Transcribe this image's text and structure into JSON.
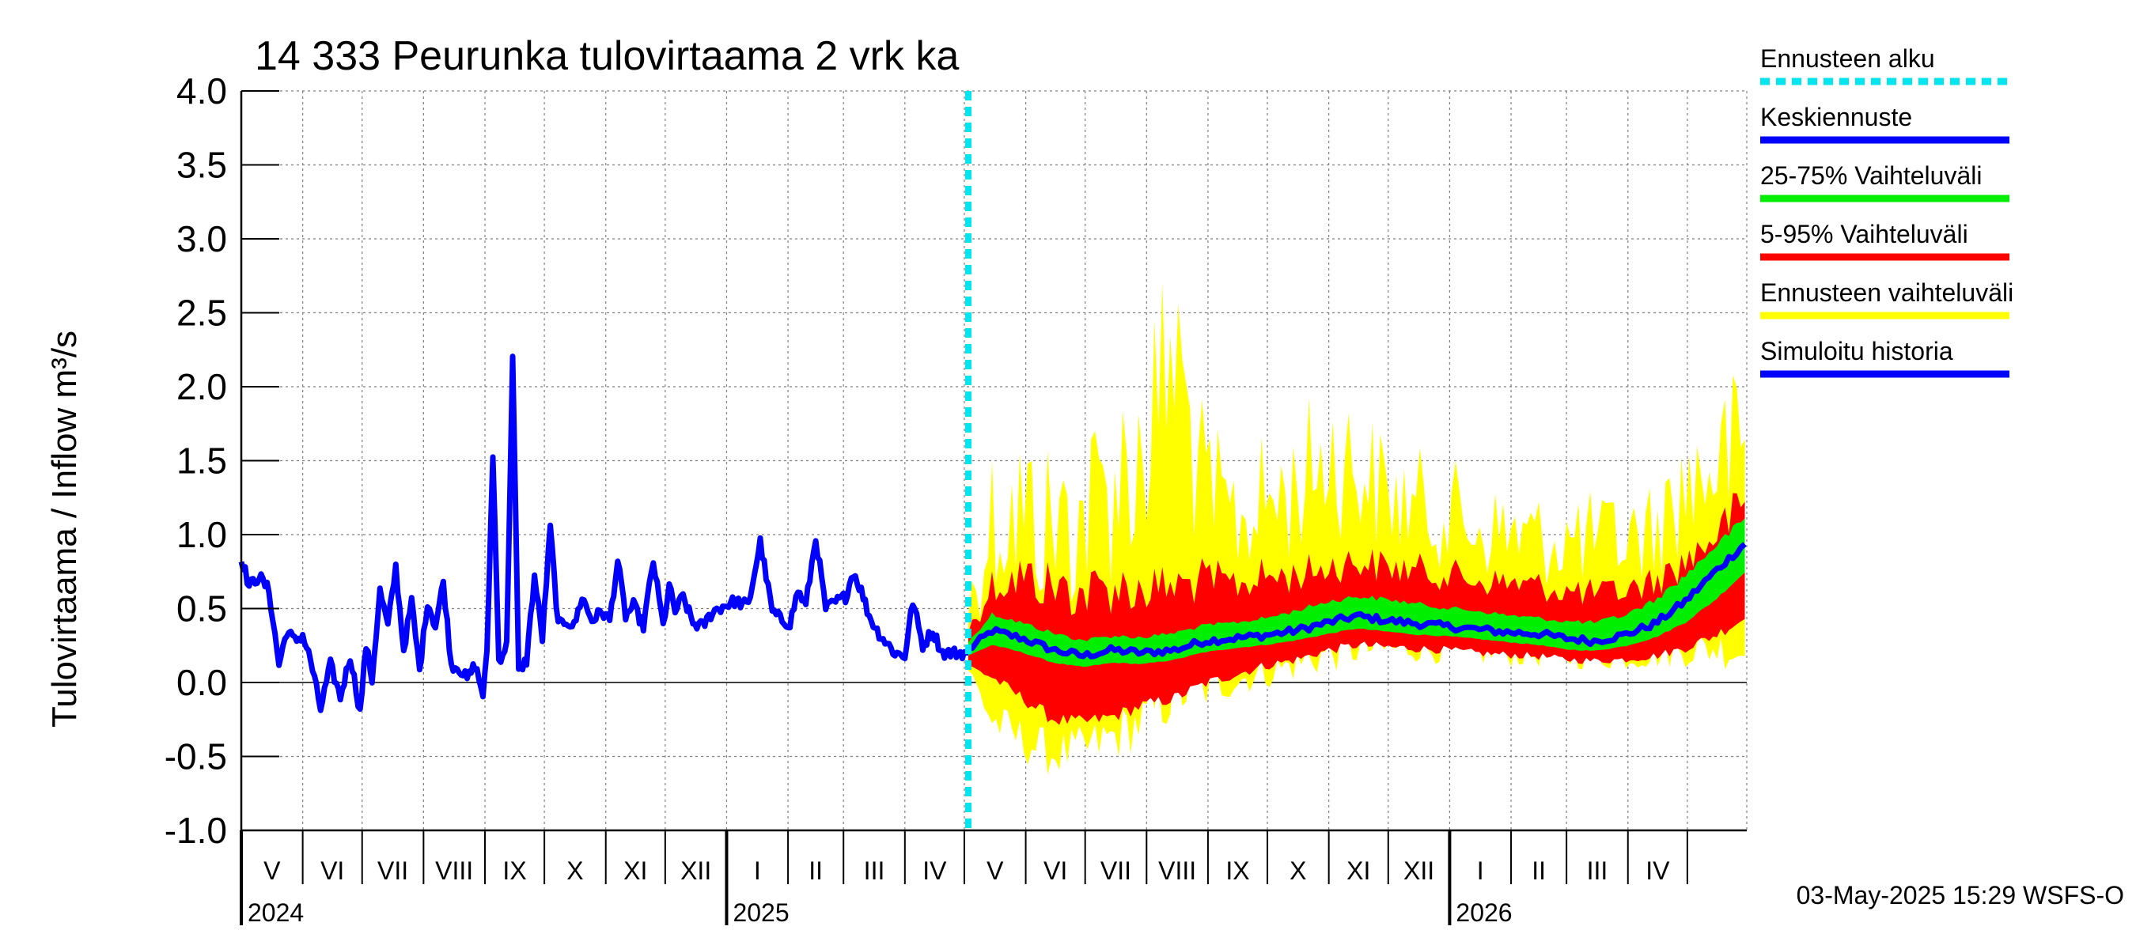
{
  "chart_data": {
    "type": "area",
    "title": "14 333 Peurunka tulovirtaama 2 vrk ka",
    "ylabel": "Tulovirtaama / Inflow    m³/s",
    "ylim": [
      -1.0,
      4.0
    ],
    "yticks": [
      "-1.0",
      "-0.5",
      "0.0",
      "0.5",
      "1.0",
      "1.5",
      "2.0",
      "2.5",
      "3.0",
      "3.5",
      "4.0"
    ],
    "xlim": [
      "2024-05-01",
      "2026-05-31"
    ],
    "forecast_start": "2025-05-03",
    "months": [
      {
        "label": "V",
        "start": "2024-05-01"
      },
      {
        "label": "VI",
        "start": "2024-06-01"
      },
      {
        "label": "VII",
        "start": "2024-07-01"
      },
      {
        "label": "VIII",
        "start": "2024-08-01"
      },
      {
        "label": "IX",
        "start": "2024-09-01"
      },
      {
        "label": "X",
        "start": "2024-10-01"
      },
      {
        "label": "XI",
        "start": "2024-11-01"
      },
      {
        "label": "XII",
        "start": "2024-12-01"
      },
      {
        "label": "I",
        "start": "2025-01-01"
      },
      {
        "label": "II",
        "start": "2025-02-01"
      },
      {
        "label": "III",
        "start": "2025-03-01"
      },
      {
        "label": "IV",
        "start": "2025-04-01"
      },
      {
        "label": "V",
        "start": "2025-05-01"
      },
      {
        "label": "VI",
        "start": "2025-06-01"
      },
      {
        "label": "VII",
        "start": "2025-07-01"
      },
      {
        "label": "VIII",
        "start": "2025-08-01"
      },
      {
        "label": "IX",
        "start": "2025-09-01"
      },
      {
        "label": "X",
        "start": "2025-10-01"
      },
      {
        "label": "XI",
        "start": "2025-11-01"
      },
      {
        "label": "XII",
        "start": "2025-12-01"
      },
      {
        "label": "I",
        "start": "2026-01-01"
      },
      {
        "label": "II",
        "start": "2026-02-01"
      },
      {
        "label": "III",
        "start": "2026-03-01"
      },
      {
        "label": "IV",
        "start": "2026-04-01"
      },
      {
        "label": "",
        "start": "2026-05-01"
      }
    ],
    "years": [
      {
        "label": "2024",
        "start": "2024-05-01"
      },
      {
        "label": "2025",
        "start": "2025-01-01"
      },
      {
        "label": "2026",
        "start": "2026-01-01"
      }
    ],
    "history": {
      "name": "Simuloitu historia",
      "color": "#0000ff",
      "x": [
        "2024-05-01",
        "2024-05-05",
        "2024-05-10",
        "2024-05-15",
        "2024-05-20",
        "2024-05-24",
        "2024-05-28",
        "2024-06-01",
        "2024-06-05",
        "2024-06-10",
        "2024-06-15",
        "2024-06-20",
        "2024-06-25",
        "2024-06-30",
        "2024-07-03",
        "2024-07-06",
        "2024-07-10",
        "2024-07-14",
        "2024-07-18",
        "2024-07-22",
        "2024-07-26",
        "2024-07-30",
        "2024-08-03",
        "2024-08-07",
        "2024-08-11",
        "2024-08-15",
        "2024-08-19",
        "2024-08-23",
        "2024-08-27",
        "2024-08-31",
        "2024-09-02",
        "2024-09-05",
        "2024-09-08",
        "2024-09-12",
        "2024-09-15",
        "2024-09-18",
        "2024-09-22",
        "2024-09-26",
        "2024-09-30",
        "2024-10-04",
        "2024-10-08",
        "2024-10-12",
        "2024-10-16",
        "2024-10-20",
        "2024-10-25",
        "2024-10-30",
        "2024-11-03",
        "2024-11-07",
        "2024-11-11",
        "2024-11-15",
        "2024-11-20",
        "2024-11-25",
        "2024-11-30",
        "2024-12-03",
        "2024-12-06",
        "2024-12-10",
        "2024-12-15",
        "2024-12-20",
        "2024-12-25",
        "2024-12-31",
        "2025-01-05",
        "2025-01-12",
        "2025-01-18",
        "2025-01-24",
        "2025-01-29",
        "2025-02-02",
        "2025-02-06",
        "2025-02-10",
        "2025-02-15",
        "2025-02-20",
        "2025-02-26",
        "2025-03-02",
        "2025-03-06",
        "2025-03-10",
        "2025-03-14",
        "2025-03-18",
        "2025-03-22",
        "2025-03-27",
        "2025-04-01",
        "2025-04-05",
        "2025-04-10",
        "2025-04-15",
        "2025-04-20",
        "2025-04-25",
        "2025-04-29",
        "2025-05-03"
      ],
      "y": [
        0.85,
        0.65,
        0.72,
        0.62,
        0.12,
        0.35,
        0.28,
        0.32,
        0.15,
        -0.18,
        0.12,
        -0.1,
        0.18,
        -0.2,
        0.25,
        0.02,
        0.62,
        0.38,
        0.78,
        0.22,
        0.55,
        0.08,
        0.55,
        0.38,
        0.68,
        0.12,
        0.1,
        0.02,
        0.12,
        -0.08,
        0.18,
        1.55,
        0.15,
        0.25,
        2.2,
        0.08,
        0.15,
        0.72,
        0.3,
        1.05,
        0.38,
        0.42,
        0.38,
        0.58,
        0.42,
        0.48,
        0.42,
        0.82,
        0.45,
        0.52,
        0.38,
        0.82,
        0.38,
        0.65,
        0.48,
        0.58,
        0.4,
        0.38,
        0.48,
        0.52,
        0.55,
        0.52,
        0.95,
        0.48,
        0.42,
        0.4,
        0.62,
        0.52,
        0.98,
        0.5,
        0.55,
        0.58,
        0.75,
        0.62,
        0.45,
        0.35,
        0.28,
        0.2,
        0.18,
        0.55,
        0.25,
        0.35,
        0.2,
        0.2,
        0.2,
        0.2
      ]
    },
    "forecast": {
      "x": [
        "2025-05-03",
        "2025-05-15",
        "2025-05-30",
        "2025-06-15",
        "2025-06-30",
        "2025-07-15",
        "2025-07-30",
        "2025-08-15",
        "2025-08-30",
        "2025-09-15",
        "2025-09-30",
        "2025-10-15",
        "2025-10-30",
        "2025-11-15",
        "2025-11-30",
        "2025-12-15",
        "2025-12-30",
        "2026-01-15",
        "2026-01-30",
        "2026-02-15",
        "2026-02-28",
        "2026-03-15",
        "2026-03-30",
        "2026-04-15",
        "2026-04-30",
        "2026-05-15",
        "2026-05-31"
      ],
      "median": {
        "name": "Keskiennuste",
        "color": "#0000ff",
        "values": [
          0.22,
          0.35,
          0.3,
          0.22,
          0.18,
          0.22,
          0.2,
          0.22,
          0.28,
          0.3,
          0.32,
          0.35,
          0.4,
          0.45,
          0.42,
          0.4,
          0.38,
          0.36,
          0.34,
          0.33,
          0.3,
          0.28,
          0.32,
          0.4,
          0.55,
          0.75,
          0.95
        ]
      },
      "band_25_75": {
        "name": "25-75% Vaihteluväli",
        "color": "#00ee00",
        "low": [
          0.18,
          0.25,
          0.2,
          0.13,
          0.1,
          0.13,
          0.12,
          0.15,
          0.2,
          0.23,
          0.25,
          0.28,
          0.32,
          0.36,
          0.34,
          0.32,
          0.31,
          0.29,
          0.27,
          0.25,
          0.22,
          0.21,
          0.24,
          0.3,
          0.4,
          0.55,
          0.75
        ],
        "high": [
          0.28,
          0.48,
          0.42,
          0.35,
          0.3,
          0.33,
          0.32,
          0.35,
          0.4,
          0.42,
          0.45,
          0.5,
          0.56,
          0.6,
          0.58,
          0.55,
          0.52,
          0.5,
          0.47,
          0.45,
          0.43,
          0.42,
          0.47,
          0.58,
          0.75,
          0.95,
          1.15
        ]
      },
      "band_5_95": {
        "name": "5-95% Vaihteluväli",
        "color": "#ff0000",
        "low": [
          0.1,
          0.0,
          -0.15,
          -0.3,
          -0.32,
          -0.28,
          -0.2,
          -0.15,
          -0.05,
          0.02,
          0.08,
          0.12,
          0.18,
          0.22,
          0.21,
          0.2,
          0.19,
          0.17,
          0.16,
          0.15,
          0.13,
          0.12,
          0.13,
          0.15,
          0.2,
          0.28,
          0.4
        ],
        "high": [
          0.4,
          0.8,
          0.9,
          0.85,
          0.8,
          0.85,
          0.8,
          0.82,
          0.85,
          0.8,
          0.85,
          0.85,
          0.9,
          0.95,
          0.9,
          0.88,
          0.85,
          0.8,
          0.78,
          0.76,
          0.72,
          0.7,
          0.72,
          0.8,
          0.95,
          1.15,
          1.4
        ]
      },
      "band_full": {
        "name": "Ennusteen vaihteluväli",
        "color": "#ffff00",
        "low": [
          0.05,
          -0.4,
          -0.55,
          -0.65,
          -0.62,
          -0.55,
          -0.45,
          -0.3,
          -0.2,
          -0.1,
          -0.05,
          0.0,
          0.05,
          0.1,
          0.12,
          0.13,
          0.12,
          0.11,
          0.1,
          0.1,
          0.09,
          0.08,
          0.08,
          0.09,
          0.1,
          0.1,
          0.05
        ],
        "high": [
          0.65,
          1.7,
          1.8,
          1.7,
          1.8,
          2.1,
          2.3,
          3.2,
          1.85,
          1.55,
          1.7,
          1.8,
          2.1,
          2.0,
          1.7,
          1.6,
          1.55,
          1.4,
          1.35,
          1.3,
          1.3,
          1.3,
          1.3,
          1.4,
          1.8,
          2.0,
          2.2
        ]
      },
      "start_line": {
        "name": "Ennusteen alku",
        "color": "#00e5ee"
      }
    },
    "legend": [
      {
        "name": "Ennusteen alku",
        "color": "#00e5ee",
        "style": "dashed"
      },
      {
        "name": "Keskiennuste",
        "color": "#0000ff",
        "style": "solid"
      },
      {
        "name": "25-75% Vaihteluväli",
        "color": "#00ee00",
        "style": "solid"
      },
      {
        "name": "5-95% Vaihteluväli",
        "color": "#ff0000",
        "style": "solid"
      },
      {
        "name": "Ennusteen vaihteluväli",
        "color": "#ffff00",
        "style": "solid"
      },
      {
        "name": "Simuloitu historia",
        "color": "#0000ff",
        "style": "solid"
      }
    ],
    "legend_position": "right",
    "grid": true,
    "timestamp": "03-May-2025 15:29 WSFS-O"
  }
}
